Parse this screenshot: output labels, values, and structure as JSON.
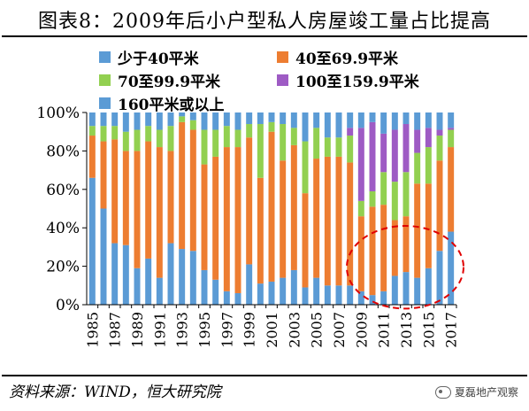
{
  "title": "图表8：2009年后小户型私人房屋竣工量占比提高",
  "source": "资料来源：WIND，恒大研究院",
  "watermark": "夏磊地产观察",
  "chart_data": {
    "type": "bar",
    "stacked": true,
    "categories": [
      "1985",
      "1986",
      "1987",
      "1988",
      "1989",
      "1990",
      "1991",
      "1992",
      "1993",
      "1994",
      "1995",
      "1996",
      "1997",
      "1998",
      "1999",
      "2000",
      "2001",
      "2002",
      "2003",
      "2004",
      "2005",
      "2006",
      "2007",
      "2008",
      "2009",
      "2010",
      "2011",
      "2012",
      "2013",
      "2014",
      "2015",
      "2016",
      "2017"
    ],
    "tick_labels": [
      "1985",
      "1987",
      "1989",
      "1991",
      "1993",
      "1995",
      "1997",
      "1999",
      "2001",
      "2003",
      "2005",
      "2007",
      "2009",
      "2011",
      "2013",
      "2015",
      "2017"
    ],
    "yticks": [
      "0%",
      "20%",
      "40%",
      "60%",
      "80%",
      "100%"
    ],
    "ylim": [
      0,
      100
    ],
    "series": [
      {
        "name": "少于40平米",
        "color": "#5B9BD5",
        "values": [
          66,
          50,
          32,
          31,
          19,
          24,
          14,
          32,
          29,
          28,
          18,
          13,
          7,
          6,
          21,
          11,
          12,
          14,
          18,
          9,
          14,
          10,
          10,
          10,
          7,
          5,
          7,
          15,
          17,
          14,
          19,
          28,
          38
        ]
      },
      {
        "name": "40至69.9平米",
        "color": "#ED7D31",
        "values": [
          22,
          35,
          54,
          49,
          61,
          61,
          68,
          48,
          66,
          63,
          55,
          64,
          75,
          76,
          66,
          55,
          78,
          61,
          65,
          49,
          62,
          67,
          67,
          64,
          39,
          46,
          45,
          29,
          29,
          49,
          44,
          47,
          44
        ]
      },
      {
        "name": "70至99.9平米",
        "color": "#92D050",
        "values": [
          5,
          8,
          7,
          10,
          11,
          8,
          9,
          13,
          3,
          5,
          18,
          14,
          11,
          9,
          7,
          28,
          5,
          19,
          9,
          27,
          16,
          10,
          10,
          14,
          8,
          8,
          17,
          20,
          23,
          16,
          19,
          13,
          9
        ]
      },
      {
        "name": "100至159.9平米",
        "color": "#9E5BC4",
        "values": [
          0,
          0,
          0,
          0,
          0,
          0,
          0,
          0,
          0,
          0,
          0,
          0,
          0,
          0,
          0,
          0,
          0,
          0,
          0,
          0,
          0,
          0,
          0,
          4,
          38,
          36,
          20,
          27,
          25,
          12,
          10,
          3,
          1
        ]
      },
      {
        "name": "160平米或以上",
        "color": "#5B9BD5",
        "values": [
          7,
          7,
          7,
          10,
          9,
          7,
          9,
          7,
          2,
          4,
          9,
          9,
          7,
          9,
          6,
          6,
          5,
          6,
          8,
          15,
          8,
          13,
          13,
          8,
          8,
          5,
          11,
          9,
          6,
          9,
          8,
          9,
          8
        ]
      }
    ],
    "annotation": "red dashed ellipse highlighting 2009-2017"
  }
}
